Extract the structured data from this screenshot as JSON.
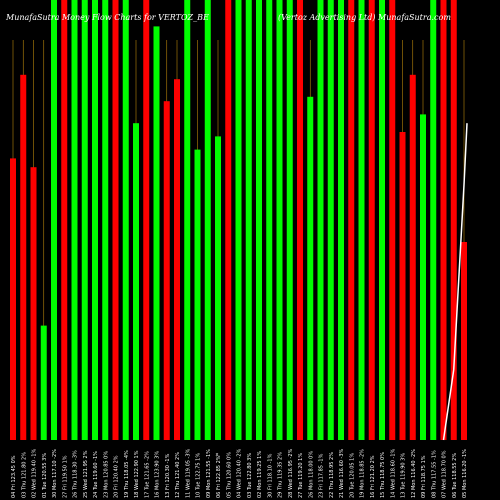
{
  "header": {
    "title": "MunafaSutra  Money Flow  Charts for VERTOZ_BE",
    "subtitle": "(Vertoz Advertising Ltd)  MunafaSutra.com"
  },
  "colors": {
    "background": "#000000",
    "up": "#00ff00",
    "down": "#ff0000",
    "line": "#ffffff",
    "guide": "#b8860b"
  },
  "chart_data": {
    "type": "bar",
    "title": "MunafaSutra  Money Flow  Charts for VERTOZ_BE",
    "subtitle": "(Vertoz Advertising Ltd)  MunafaSutra.com",
    "xlabel": "",
    "ylabel": "",
    "ylim": [
      0,
      100
    ],
    "grid": false,
    "center_label": "x",
    "categories": [
      "04 Fri 123.45 0%",
      "03 Thu 121.80 2%",
      "02 Wed 119.40 -1%",
      "01 Tue 120.55 3%",
      "30 Mon 117.10 -2%",
      "27 Fri 119.50 1%",
      "26 Thu 118.30 -3%",
      "25 Wed 121.95 2%",
      "24 Tue 119.60 -1%",
      "23 Mon 120.85 0%",
      "20 Fri 120.40 2%",
      "19 Thu 118.05 -4%",
      "18 Wed 122.90 1%",
      "17 Tue 121.65 -2%",
      "16 Mon 123.90 3%",
      "13 Fri 120.30 -1%",
      "12 Thu 121.40 2%",
      "11 Wed 119.05 -3%",
      "10 Tue 122.75 1%",
      "09 Mon 121.55 -1%",
      "06 Fri 122.85 2%",
      "05 Thu 120.60 0%",
      "04 Wed 120.40 -2%",
      "03 Tue 122.80 3%",
      "02 Mon 119.25 1%",
      "30 Fri 118.10 -1%",
      "29 Thu 119.35 2%",
      "28 Wed 116.95 -2%",
      "27 Tue 119.20 1%",
      "26 Mon 118.00 0%",
      "23 Fri 117.85 -1%",
      "22 Thu 118.95 2%",
      "21 Wed 116.60 -3%",
      "20 Tue 120.05 1%",
      "19 Mon 118.85 -2%",
      "16 Fri 121.20 2%",
      "15 Thu 118.75 0%",
      "14 Wed 118.60 -1%",
      "13 Tue 119.90 3%",
      "12 Mon 116.40 -2%",
      "09 Fri 118.75 1%",
      "08 Thu 117.55 -1%",
      "07 Wed 118.70 0%",
      "06 Tue 118.55 2%",
      "05 Mon 116.20 -1%"
    ],
    "series": [
      {
        "values": [
          64,
          83,
          62,
          26,
          100,
          100,
          100,
          100,
          100,
          100,
          100,
          100,
          72,
          100,
          94,
          77,
          82,
          100,
          66,
          100,
          69,
          100,
          100,
          100,
          100,
          100,
          100,
          100,
          100,
          78,
          100,
          100,
          100,
          100,
          100,
          100,
          100,
          100,
          70,
          83,
          74,
          100,
          100,
          100,
          45
        ],
        "directions": [
          "down",
          "down",
          "down",
          "up",
          "up",
          "down",
          "up",
          "up",
          "up",
          "up",
          "down",
          "up",
          "up",
          "down",
          "up",
          "down",
          "down",
          "up",
          "up",
          "up",
          "up",
          "down",
          "up",
          "up",
          "up",
          "up",
          "up",
          "up",
          "down",
          "up",
          "up",
          "up",
          "up",
          "down",
          "up",
          "down",
          "up",
          "down",
          "down",
          "down",
          "up",
          "up",
          "down",
          "down",
          "down"
        ]
      }
    ],
    "overlay_line": [
      0,
      0,
      0,
      0,
      0,
      0,
      0,
      0,
      0,
      0,
      0,
      0,
      0,
      0,
      0,
      0,
      0,
      0,
      0,
      0,
      0,
      0,
      0,
      0,
      0,
      0,
      0,
      0,
      0,
      0,
      0,
      0,
      0,
      0,
      0,
      0,
      0,
      0,
      0,
      0,
      0,
      0,
      0,
      16,
      58
    ]
  }
}
